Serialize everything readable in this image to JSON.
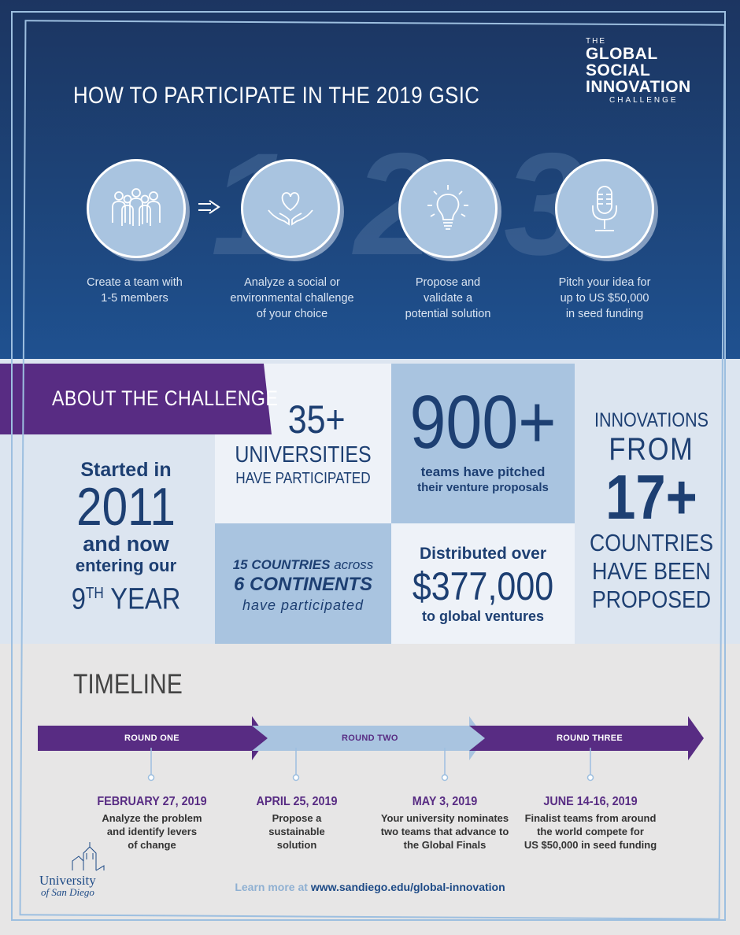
{
  "header": {
    "title": "HOW TO PARTICIPATE IN THE 2019 GSIC",
    "logo": {
      "the": "THE",
      "line1": "GLOBAL",
      "line2": "SOCIAL",
      "line3": "INNOVATION",
      "line4": "CHALLENGE"
    },
    "big_numbers": [
      "1",
      "2",
      "3"
    ],
    "steps": [
      {
        "icon": "team-icon",
        "line1": "Create a team with",
        "line2": "1-5 members",
        "line3": ""
      },
      {
        "icon": "heart-hands-icon",
        "line1": "Analyze a social or",
        "line2": "environmental challenge",
        "line3": "of your choice"
      },
      {
        "icon": "lightbulb-icon",
        "line1": "Propose and",
        "line2": "validate a",
        "line3": "potential solution"
      },
      {
        "icon": "microphone-icon",
        "line1": "Pitch your idea for",
        "line2": "up to US $50,000",
        "line3": "in seed funding"
      }
    ]
  },
  "about": {
    "banner": "ABOUT THE CHALLENGE",
    "started": {
      "line1": "Started in",
      "year": "2011",
      "line2": "and now",
      "line3": "entering our",
      "nth": "9",
      "th": "TH",
      "year_word": "YEAR"
    },
    "universities": {
      "number": "35+",
      "line1": "UNIVERSITIES",
      "line2": "HAVE PARTICIPATED"
    },
    "teams": {
      "number": "900+",
      "line1": "teams have pitched",
      "line2": "their venture proposals"
    },
    "countries": {
      "line1a": "15 COUNTRIES",
      "line1b": "across",
      "line2": "6 CONTINENTS",
      "line3": "have participated"
    },
    "distributed": {
      "line1": "Distributed over",
      "amount": "$377,000",
      "line2": "to global ventures"
    },
    "innovations": {
      "line1": "INNOVATIONS",
      "line2": "FROM",
      "number": "17+",
      "line3": "COUNTRIES",
      "line4": "HAVE BEEN",
      "line5": "PROPOSED"
    }
  },
  "timeline": {
    "title": "TIMELINE",
    "rounds": [
      "ROUND ONE",
      "ROUND TWO",
      "ROUND THREE"
    ],
    "milestones": [
      {
        "date": "FEBRUARY 27, 2019",
        "line1": "Analyze the problem",
        "line2": "and identify levers",
        "line3": "of change"
      },
      {
        "date": "APRIL 25, 2019",
        "line1": "Propose a",
        "line2": "sustainable",
        "line3": "solution"
      },
      {
        "date": "MAY 3, 2019",
        "line1": "Your university nominates",
        "line2": "two teams that advance to",
        "line3": "the Global Finals"
      },
      {
        "date": "JUNE 14-16, 2019",
        "line1": "Finalist teams from around",
        "line2": "the world compete for",
        "line3": "US $50,000 in seed funding"
      }
    ]
  },
  "footer": {
    "learn_prefix": "Learn more at",
    "url": "www.sandiego.edu/global-innovation",
    "university_line1": "University",
    "university_line2": "of San Diego"
  },
  "colors": {
    "navy": "#1d3f72",
    "purple": "#582c83",
    "light_blue": "#a9c4e0"
  }
}
